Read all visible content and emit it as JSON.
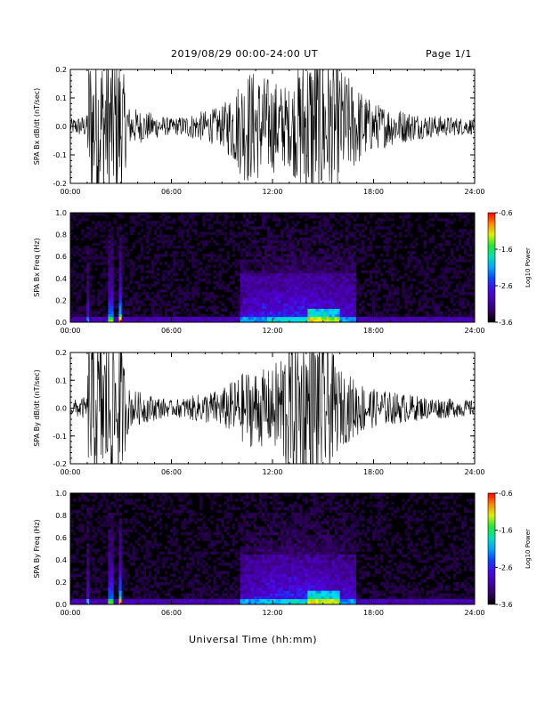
{
  "header": {
    "title": "2019/08/29  00:00-24:00 UT",
    "page": "Page 1/1"
  },
  "footer": {
    "xlabel": "Universal Time (hh:mm)"
  },
  "chart_data": [
    {
      "type": "line",
      "ylabel": "SPA Bx dB/dt (nT/sec)",
      "ylim": [
        -0.2,
        0.2
      ],
      "yticks": [
        "0.2",
        "0.1",
        "0.0",
        "-0.1",
        "-0.2"
      ],
      "xlim": [
        0,
        24
      ],
      "xticks": [
        "00:00",
        "06:00",
        "12:00",
        "18:00",
        "24:00"
      ],
      "x": [
        0,
        1,
        1.1,
        2.4,
        2.9,
        3.5,
        6,
        9,
        10.5,
        12,
        13,
        14,
        15,
        16,
        18,
        21,
        24
      ],
      "y_envelope": [
        0.02,
        0.03,
        0.2,
        0.2,
        0.2,
        0.05,
        0.02,
        0.05,
        0.15,
        0.12,
        0.1,
        0.2,
        0.2,
        0.15,
        0.06,
        0.03,
        0.02
      ]
    },
    {
      "type": "heatmap",
      "ylabel": "SPA Bx Freq (Hz)",
      "ylim": [
        0,
        1.0
      ],
      "yticks": [
        "1.0",
        "0.8",
        "0.6",
        "0.4",
        "0.2",
        "0.0"
      ],
      "xlim": [
        0,
        24
      ],
      "xticks": [
        "00:00",
        "06:00",
        "12:00",
        "18:00",
        "24:00"
      ],
      "colorbar": {
        "label": "Log10 Power",
        "ticks": [
          "-0.6",
          "-1.6",
          "-2.6",
          "-3.6"
        ],
        "range": [
          -3.6,
          -0.6
        ]
      }
    },
    {
      "type": "line",
      "ylabel": "SPA By dB/dt (nT/sec)",
      "ylim": [
        -0.2,
        0.2
      ],
      "yticks": [
        "0.2",
        "0.1",
        "0.0",
        "-0.1",
        "-0.2"
      ],
      "xlim": [
        0,
        24
      ],
      "xticks": [
        "00:00",
        "06:00",
        "12:00",
        "18:00",
        "24:00"
      ],
      "x": [
        0,
        1,
        1.1,
        2.4,
        2.9,
        3.5,
        6,
        9,
        10.5,
        12,
        13,
        14,
        15,
        16,
        18,
        21,
        24
      ],
      "y_envelope": [
        0.02,
        0.03,
        0.2,
        0.2,
        0.2,
        0.05,
        0.02,
        0.05,
        0.1,
        0.1,
        0.2,
        0.2,
        0.2,
        0.1,
        0.05,
        0.03,
        0.02
      ]
    },
    {
      "type": "heatmap",
      "ylabel": "SPA By Freq (Hz)",
      "ylim": [
        0,
        1.0
      ],
      "yticks": [
        "1.0",
        "0.8",
        "0.6",
        "0.4",
        "0.2",
        "0.0"
      ],
      "xlim": [
        0,
        24
      ],
      "xticks": [
        "00:00",
        "06:00",
        "12:00",
        "18:00",
        "24:00"
      ],
      "colorbar": {
        "label": "Log10 Power",
        "ticks": [
          "-0.6",
          "-1.6",
          "-2.6",
          "-3.6"
        ],
        "range": [
          -3.6,
          -0.6
        ]
      }
    }
  ]
}
